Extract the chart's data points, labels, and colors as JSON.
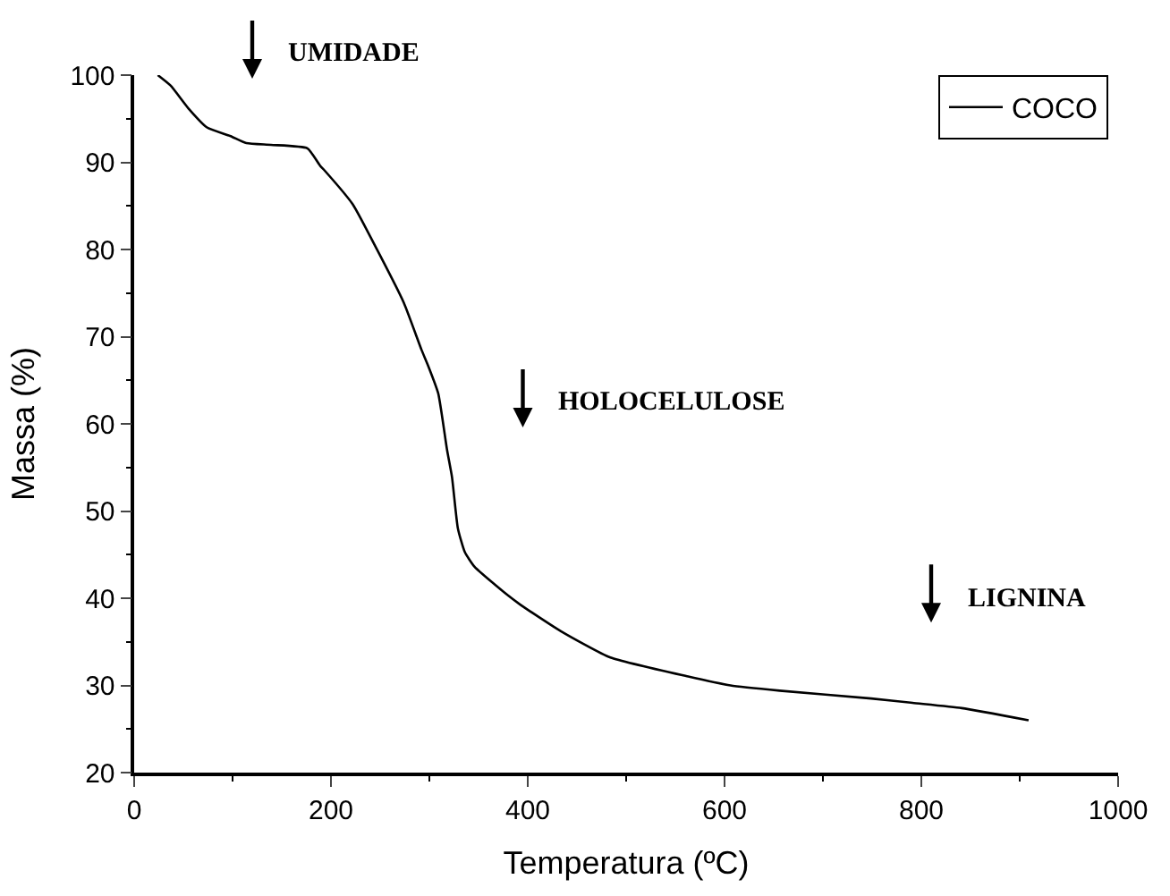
{
  "chart_data": {
    "type": "line",
    "xlabel": "Temperatura (ºC)",
    "ylabel": "Massa (%)",
    "x": [
      24,
      37,
      55,
      74,
      98,
      114,
      139,
      176,
      189,
      194,
      222,
      244,
      274,
      292,
      299,
      309,
      318,
      323,
      329,
      336,
      346,
      379,
      392,
      434,
      484,
      564,
      606,
      656,
      749,
      791,
      841,
      909
    ],
    "series": [
      {
        "name": "COCO",
        "color": "#000000",
        "values": [
          100,
          98.8,
          96.2,
          94,
          93,
          92.2,
          92,
          91.6,
          89.6,
          89,
          85.2,
          80.6,
          73.9,
          68.5,
          66.6,
          63.5,
          57,
          53.9,
          48,
          45.3,
          43.6,
          40.4,
          39.3,
          36.2,
          33.2,
          31,
          30,
          29.4,
          28.5,
          28,
          27.4,
          26
        ]
      }
    ],
    "xlim": [
      0,
      1000
    ],
    "ylim": [
      20,
      100
    ],
    "xticks": [
      0,
      {
        "value": 100,
        "label": null
      },
      200,
      {
        "value": 300,
        "label": null
      },
      400,
      {
        "value": 500,
        "label": null
      },
      600,
      {
        "value": 700,
        "label": null
      },
      800,
      {
        "value": 900,
        "label": null
      },
      1000
    ],
    "yticks": [
      20,
      {
        "value": 25,
        "label": null
      },
      30,
      {
        "value": 35,
        "label": null
      },
      40,
      {
        "value": 45,
        "label": null
      },
      50,
      {
        "value": 55,
        "label": null
      },
      60,
      {
        "value": 65,
        "label": null
      },
      70,
      {
        "value": 75,
        "label": null
      },
      80,
      {
        "value": 85,
        "label": null
      },
      90,
      {
        "value": 95,
        "label": null
      },
      100
    ],
    "annotations": [
      "UMIDADE",
      "HOLOCELULOSE",
      "LIGNINA"
    ],
    "legend": "top right",
    "marker": "none",
    "line_style": "solid"
  }
}
